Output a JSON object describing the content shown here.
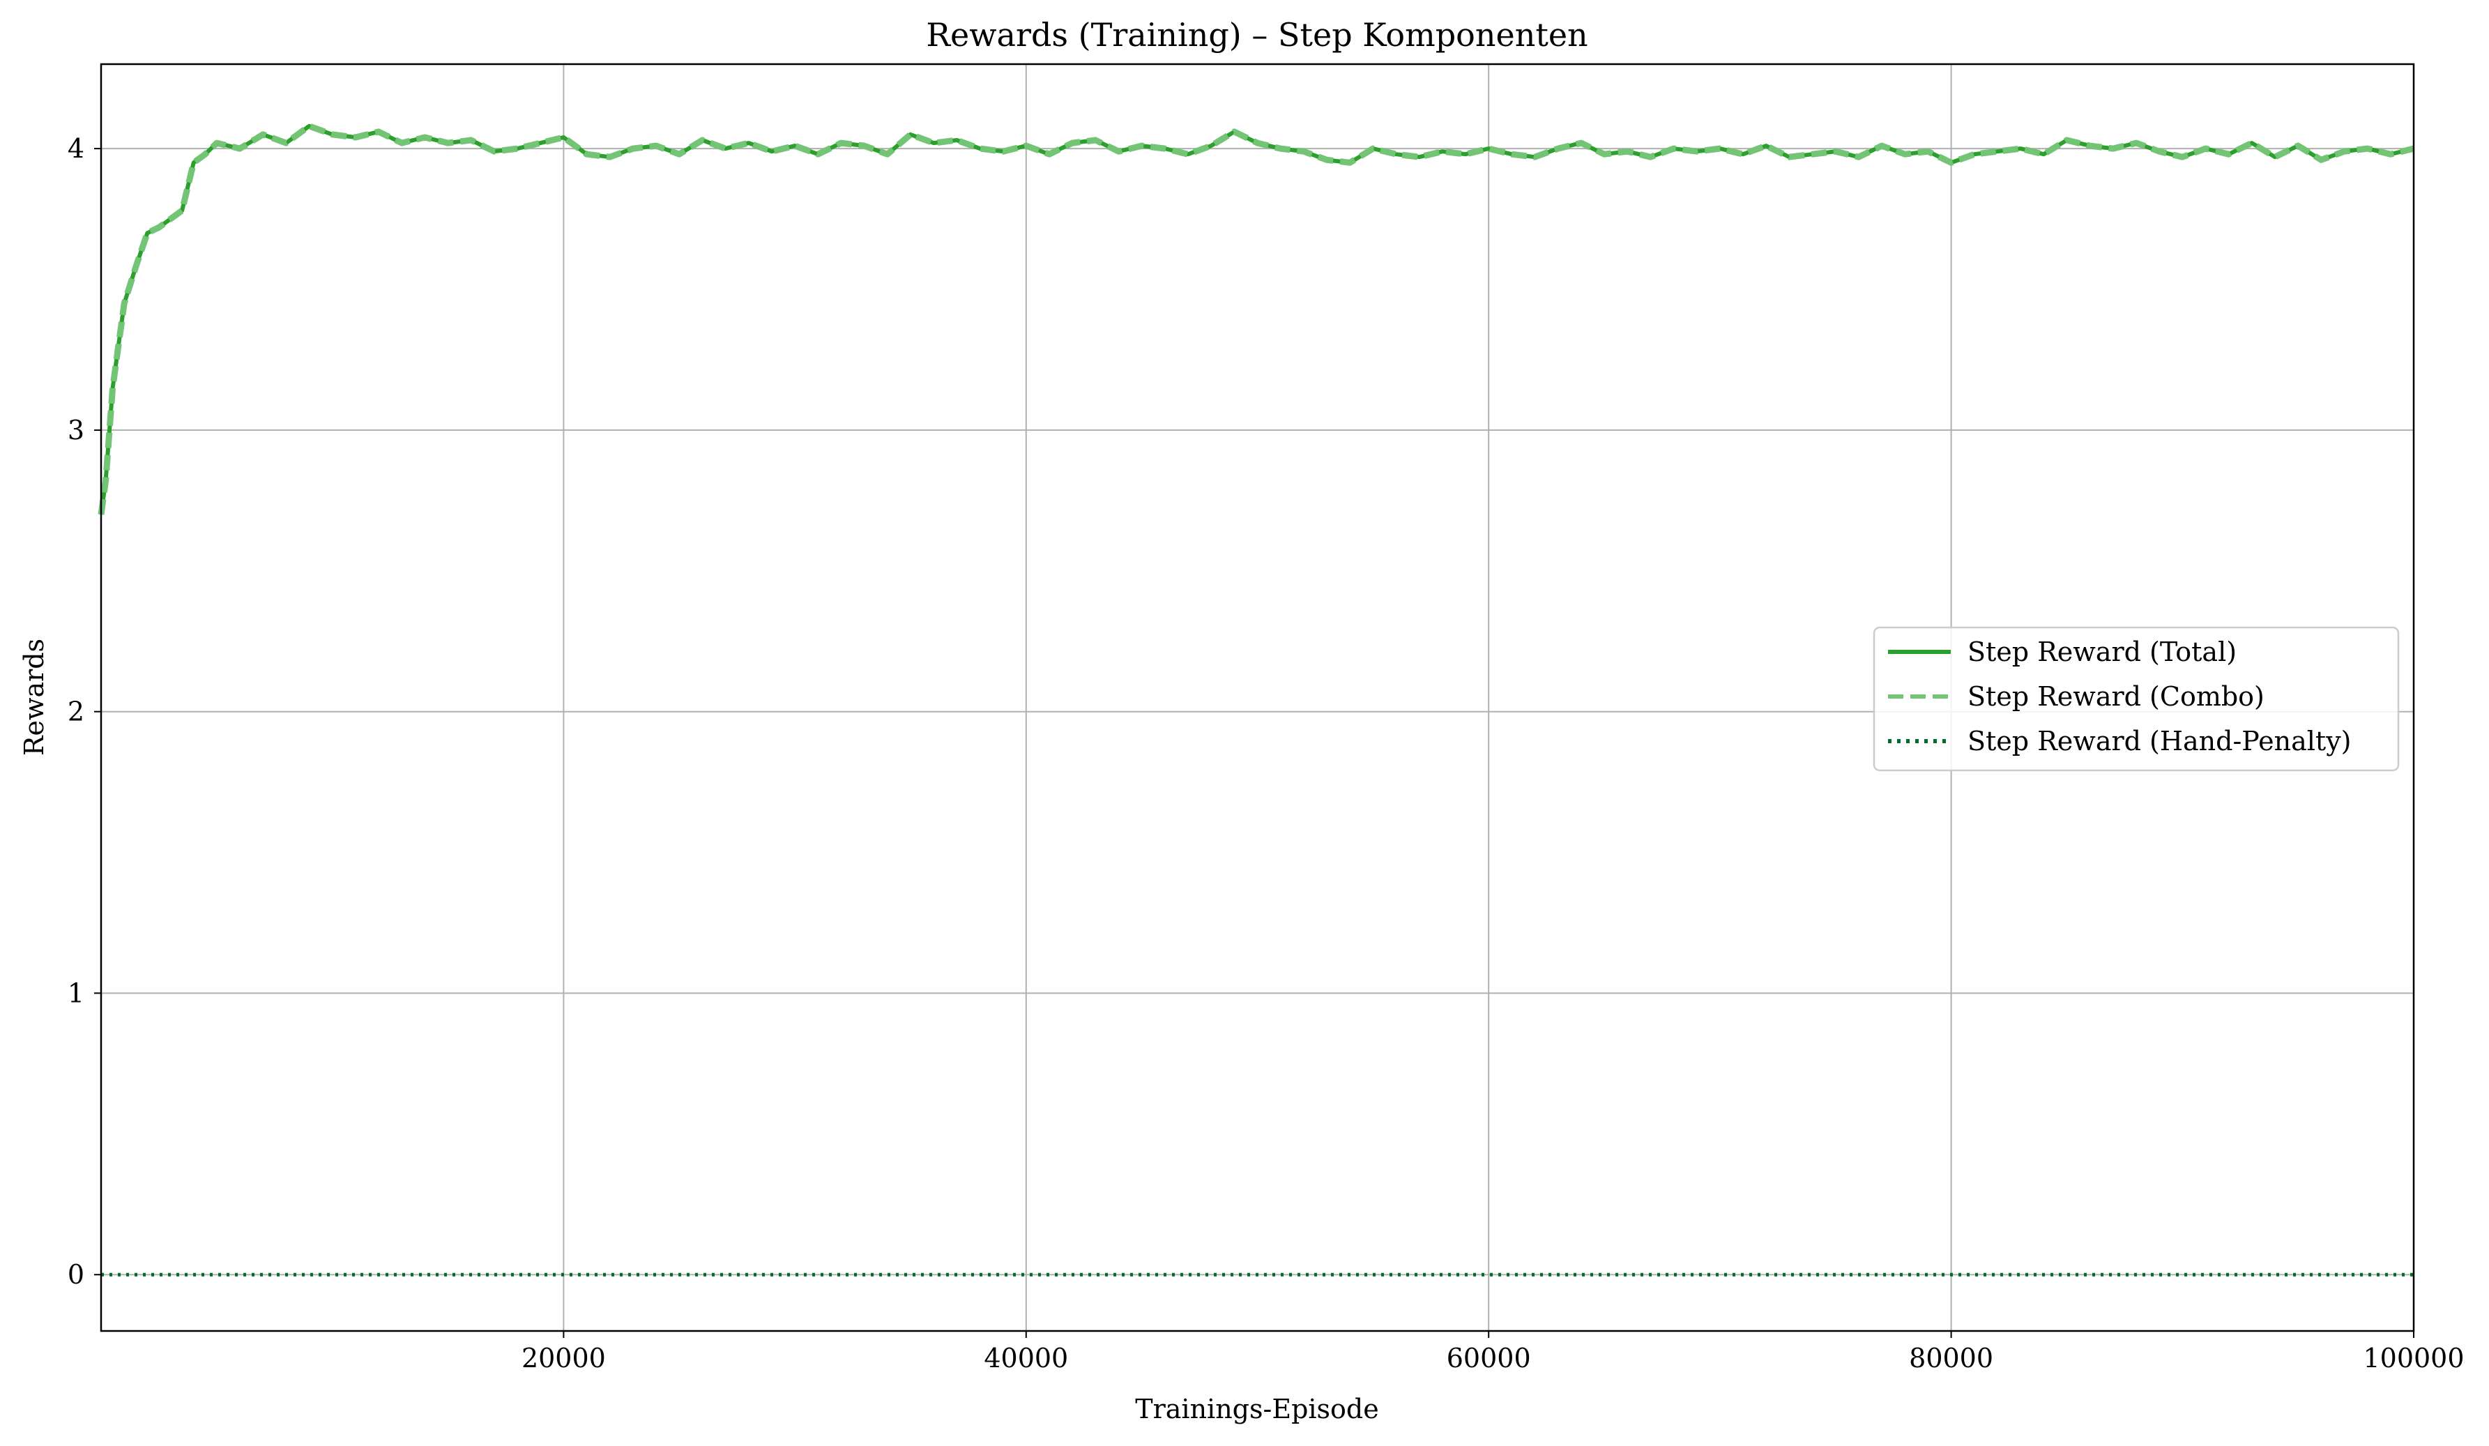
{
  "chart_data": {
    "type": "line",
    "title": "Rewards (Training) – Step Komponenten",
    "xlabel": "Trainings-Episode",
    "ylabel": "Rewards",
    "xlim": [
      0,
      100000
    ],
    "ylim": [
      -0.2,
      4.3
    ],
    "xticks": [
      20000,
      40000,
      60000,
      80000,
      100000
    ],
    "xtick_labels": [
      "20000",
      "40000",
      "60000",
      "80000",
      "100000"
    ],
    "yticks": [
      0,
      1,
      2,
      3,
      4
    ],
    "ytick_labels": [
      "0",
      "1",
      "2",
      "3",
      "4"
    ],
    "grid": true,
    "legend_position": "center-right",
    "series": [
      {
        "name": "Step Reward (Total)",
        "color": "#2ca02c",
        "style": "solid",
        "x": [
          0,
          200,
          500,
          1000,
          1500,
          2000,
          2500,
          3000,
          3500,
          4000,
          4500,
          5000,
          6000,
          7000,
          8000,
          9000,
          10000,
          11000,
          12000,
          13000,
          14000,
          15000,
          16000,
          17000,
          18000,
          19000,
          20000,
          21000,
          22000,
          23000,
          24000,
          25000,
          26000,
          27000,
          28000,
          29000,
          30000,
          31000,
          32000,
          33000,
          34000,
          35000,
          36000,
          37000,
          38000,
          39000,
          40000,
          41000,
          42000,
          43000,
          44000,
          45000,
          46000,
          47000,
          48000,
          49000,
          50000,
          51000,
          52000,
          53000,
          54000,
          55000,
          56000,
          57000,
          58000,
          59000,
          60000,
          61000,
          62000,
          63000,
          64000,
          65000,
          66000,
          67000,
          68000,
          69000,
          70000,
          71000,
          72000,
          73000,
          74000,
          75000,
          76000,
          77000,
          78000,
          79000,
          80000,
          81000,
          82000,
          83000,
          84000,
          85000,
          86000,
          87000,
          88000,
          89000,
          90000,
          91000,
          92000,
          93000,
          94000,
          95000,
          96000,
          97000,
          98000,
          99000,
          100000
        ],
        "y": [
          2.7,
          2.82,
          3.15,
          3.45,
          3.58,
          3.7,
          3.72,
          3.75,
          3.78,
          3.95,
          3.98,
          4.02,
          4.0,
          4.05,
          4.02,
          4.08,
          4.05,
          4.04,
          4.06,
          4.02,
          4.04,
          4.02,
          4.03,
          3.99,
          4.0,
          4.02,
          4.04,
          3.98,
          3.97,
          4.0,
          4.01,
          3.98,
          4.03,
          4.0,
          4.02,
          3.99,
          4.01,
          3.98,
          4.02,
          4.01,
          3.98,
          4.05,
          4.02,
          4.03,
          4.0,
          3.99,
          4.01,
          3.98,
          4.02,
          4.03,
          3.99,
          4.01,
          4.0,
          3.98,
          4.01,
          4.06,
          4.02,
          4.0,
          3.99,
          3.96,
          3.95,
          4.0,
          3.98,
          3.97,
          3.99,
          3.98,
          4.0,
          3.98,
          3.97,
          4.0,
          4.02,
          3.98,
          3.99,
          3.97,
          4.0,
          3.99,
          4.0,
          3.98,
          4.01,
          3.97,
          3.98,
          3.99,
          3.97,
          4.01,
          3.98,
          3.99,
          3.95,
          3.98,
          3.99,
          4.0,
          3.98,
          4.03,
          4.01,
          4.0,
          4.02,
          3.99,
          3.97,
          4.0,
          3.98,
          4.02,
          3.97,
          4.01,
          3.96,
          3.99,
          4.0,
          3.98,
          4.0
        ]
      },
      {
        "name": "Step Reward (Combo)",
        "color": "#74c476",
        "style": "dashed",
        "x": [
          0,
          200,
          500,
          1000,
          1500,
          2000,
          2500,
          3000,
          3500,
          4000,
          4500,
          5000,
          6000,
          7000,
          8000,
          9000,
          10000,
          11000,
          12000,
          13000,
          14000,
          15000,
          16000,
          17000,
          18000,
          19000,
          20000,
          21000,
          22000,
          23000,
          24000,
          25000,
          26000,
          27000,
          28000,
          29000,
          30000,
          31000,
          32000,
          33000,
          34000,
          35000,
          36000,
          37000,
          38000,
          39000,
          40000,
          41000,
          42000,
          43000,
          44000,
          45000,
          46000,
          47000,
          48000,
          49000,
          50000,
          51000,
          52000,
          53000,
          54000,
          55000,
          56000,
          57000,
          58000,
          59000,
          60000,
          61000,
          62000,
          63000,
          64000,
          65000,
          66000,
          67000,
          68000,
          69000,
          70000,
          71000,
          72000,
          73000,
          74000,
          75000,
          76000,
          77000,
          78000,
          79000,
          80000,
          81000,
          82000,
          83000,
          84000,
          85000,
          86000,
          87000,
          88000,
          89000,
          90000,
          91000,
          92000,
          93000,
          94000,
          95000,
          96000,
          97000,
          98000,
          99000,
          100000
        ],
        "y": [
          2.7,
          2.82,
          3.15,
          3.45,
          3.58,
          3.7,
          3.72,
          3.75,
          3.78,
          3.95,
          3.98,
          4.02,
          4.0,
          4.05,
          4.02,
          4.08,
          4.05,
          4.04,
          4.06,
          4.02,
          4.04,
          4.02,
          4.03,
          3.99,
          4.0,
          4.02,
          4.04,
          3.98,
          3.97,
          4.0,
          4.01,
          3.98,
          4.03,
          4.0,
          4.02,
          3.99,
          4.01,
          3.98,
          4.02,
          4.01,
          3.98,
          4.05,
          4.02,
          4.03,
          4.0,
          3.99,
          4.01,
          3.98,
          4.02,
          4.03,
          3.99,
          4.01,
          4.0,
          3.98,
          4.01,
          4.06,
          4.02,
          4.0,
          3.99,
          3.96,
          3.95,
          4.0,
          3.98,
          3.97,
          3.99,
          3.98,
          4.0,
          3.98,
          3.97,
          4.0,
          4.02,
          3.98,
          3.99,
          3.97,
          4.0,
          3.99,
          4.0,
          3.98,
          4.01,
          3.97,
          3.98,
          3.99,
          3.97,
          4.01,
          3.98,
          3.99,
          3.95,
          3.98,
          3.99,
          4.0,
          3.98,
          4.03,
          4.01,
          4.0,
          4.02,
          3.99,
          3.97,
          4.0,
          3.98,
          4.02,
          3.97,
          4.01,
          3.96,
          3.99,
          4.0,
          3.98,
          4.0
        ]
      },
      {
        "name": "Step Reward (Hand-Penalty)",
        "color": "#006d2c",
        "style": "dotted",
        "x": [
          0,
          100000
        ],
        "y": [
          0,
          0
        ]
      }
    ]
  }
}
